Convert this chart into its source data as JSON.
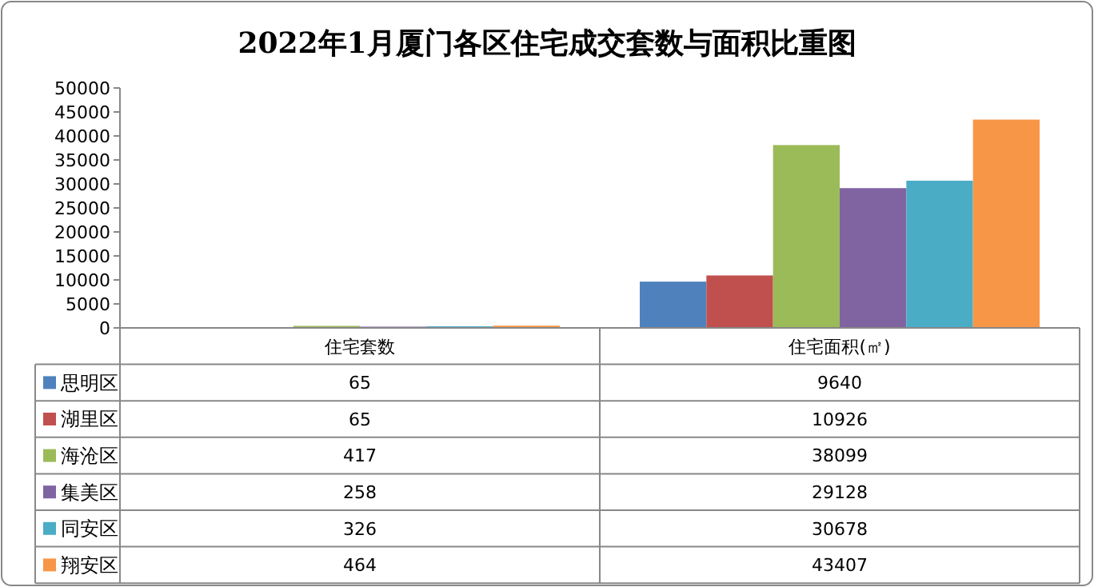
{
  "chart_data": {
    "type": "bar",
    "title": "2022年1月厦门各区住宅成交套数与面积比重图",
    "categories": [
      "住宅套数",
      "住宅面积(㎡)"
    ],
    "series": [
      {
        "name": "思明区",
        "color": "#4f81bd",
        "values": [
          65,
          9640
        ]
      },
      {
        "name": "湖里区",
        "color": "#c0504d",
        "values": [
          65,
          10926
        ]
      },
      {
        "name": "海沧区",
        "color": "#9bbb59",
        "values": [
          417,
          38099
        ]
      },
      {
        "name": "集美区",
        "color": "#8064a2",
        "values": [
          258,
          29128
        ]
      },
      {
        "name": "同安区",
        "color": "#4bacc6",
        "values": [
          326,
          30678
        ]
      },
      {
        "name": "翔安区",
        "color": "#f79646",
        "values": [
          464,
          43407
        ]
      }
    ],
    "ylim": [
      0,
      50000
    ],
    "yticks": [
      0,
      5000,
      10000,
      15000,
      20000,
      25000,
      30000,
      35000,
      40000,
      45000,
      50000
    ],
    "grid": false,
    "legend": "bottom",
    "data_labels": true
  }
}
